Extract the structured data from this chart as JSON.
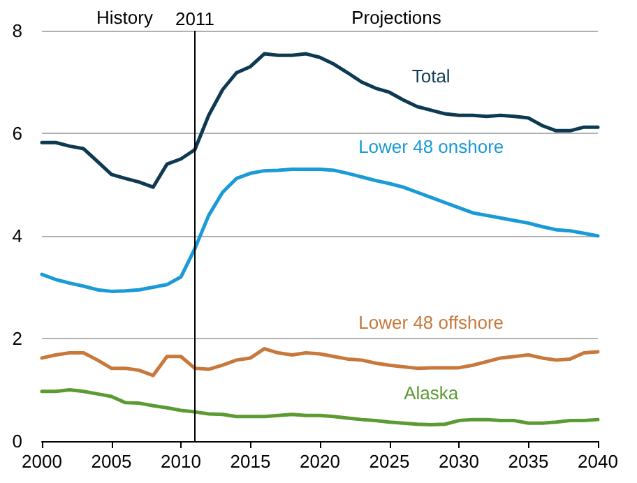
{
  "chart_data": {
    "type": "line",
    "x": [
      2000,
      2001,
      2002,
      2003,
      2004,
      2005,
      2006,
      2007,
      2008,
      2009,
      2010,
      2011,
      2012,
      2013,
      2014,
      2015,
      2016,
      2017,
      2018,
      2019,
      2020,
      2021,
      2022,
      2023,
      2024,
      2025,
      2026,
      2027,
      2028,
      2029,
      2030,
      2031,
      2032,
      2033,
      2034,
      2035,
      2036,
      2037,
      2038,
      2039,
      2040
    ],
    "series": [
      {
        "name": "Total",
        "color": "#0d3a52",
        "values": [
          5.82,
          5.82,
          5.75,
          5.7,
          5.45,
          5.2,
          5.12,
          5.05,
          4.95,
          5.4,
          5.5,
          5.68,
          6.35,
          6.85,
          7.18,
          7.3,
          7.55,
          7.52,
          7.52,
          7.55,
          7.48,
          7.35,
          7.18,
          7.0,
          6.88,
          6.8,
          6.65,
          6.52,
          6.45,
          6.38,
          6.35,
          6.35,
          6.33,
          6.35,
          6.33,
          6.3,
          6.15,
          6.05,
          6.05,
          6.12,
          6.12
        ]
      },
      {
        "name": "Lower 48 onshore",
        "color": "#1a9ad6",
        "values": [
          3.25,
          3.15,
          3.08,
          3.02,
          2.95,
          2.92,
          2.93,
          2.95,
          3.0,
          3.05,
          3.2,
          3.75,
          4.4,
          4.85,
          5.12,
          5.22,
          5.27,
          5.28,
          5.3,
          5.3,
          5.3,
          5.28,
          5.22,
          5.15,
          5.08,
          5.02,
          4.95,
          4.85,
          4.75,
          4.65,
          4.55,
          4.45,
          4.4,
          4.35,
          4.3,
          4.25,
          4.18,
          4.12,
          4.1,
          4.05,
          4.0
        ]
      },
      {
        "name": "Lower 48 offshore",
        "color": "#c8783a",
        "values": [
          1.62,
          1.68,
          1.72,
          1.72,
          1.58,
          1.42,
          1.42,
          1.38,
          1.28,
          1.65,
          1.65,
          1.42,
          1.4,
          1.48,
          1.58,
          1.62,
          1.8,
          1.72,
          1.68,
          1.72,
          1.7,
          1.65,
          1.6,
          1.58,
          1.52,
          1.48,
          1.45,
          1.42,
          1.43,
          1.43,
          1.43,
          1.48,
          1.55,
          1.62,
          1.65,
          1.68,
          1.62,
          1.58,
          1.6,
          1.72,
          1.74
        ]
      },
      {
        "name": "Alaska",
        "color": "#5c9a32",
        "values": [
          0.97,
          0.97,
          1.0,
          0.97,
          0.92,
          0.87,
          0.75,
          0.74,
          0.69,
          0.65,
          0.6,
          0.57,
          0.53,
          0.52,
          0.48,
          0.48,
          0.48,
          0.5,
          0.52,
          0.5,
          0.5,
          0.48,
          0.45,
          0.42,
          0.4,
          0.37,
          0.35,
          0.33,
          0.32,
          0.33,
          0.4,
          0.42,
          0.42,
          0.4,
          0.4,
          0.35,
          0.35,
          0.37,
          0.4,
          0.4,
          0.42
        ]
      }
    ],
    "xlim": [
      2000,
      2040
    ],
    "xticks": [
      2000,
      2005,
      2010,
      2015,
      2020,
      2025,
      2030,
      2035,
      2040
    ],
    "ylim": [
      0,
      8
    ],
    "yticks": [
      0,
      2,
      4,
      6,
      8
    ],
    "grid": "y",
    "legend": false,
    "marker": "none",
    "line_style": "solid",
    "ref_lines": [
      {
        "axis": "x",
        "value": 2011,
        "label": "2011",
        "color": "#000000"
      }
    ],
    "annotations": [
      "History",
      "Projections"
    ]
  }
}
